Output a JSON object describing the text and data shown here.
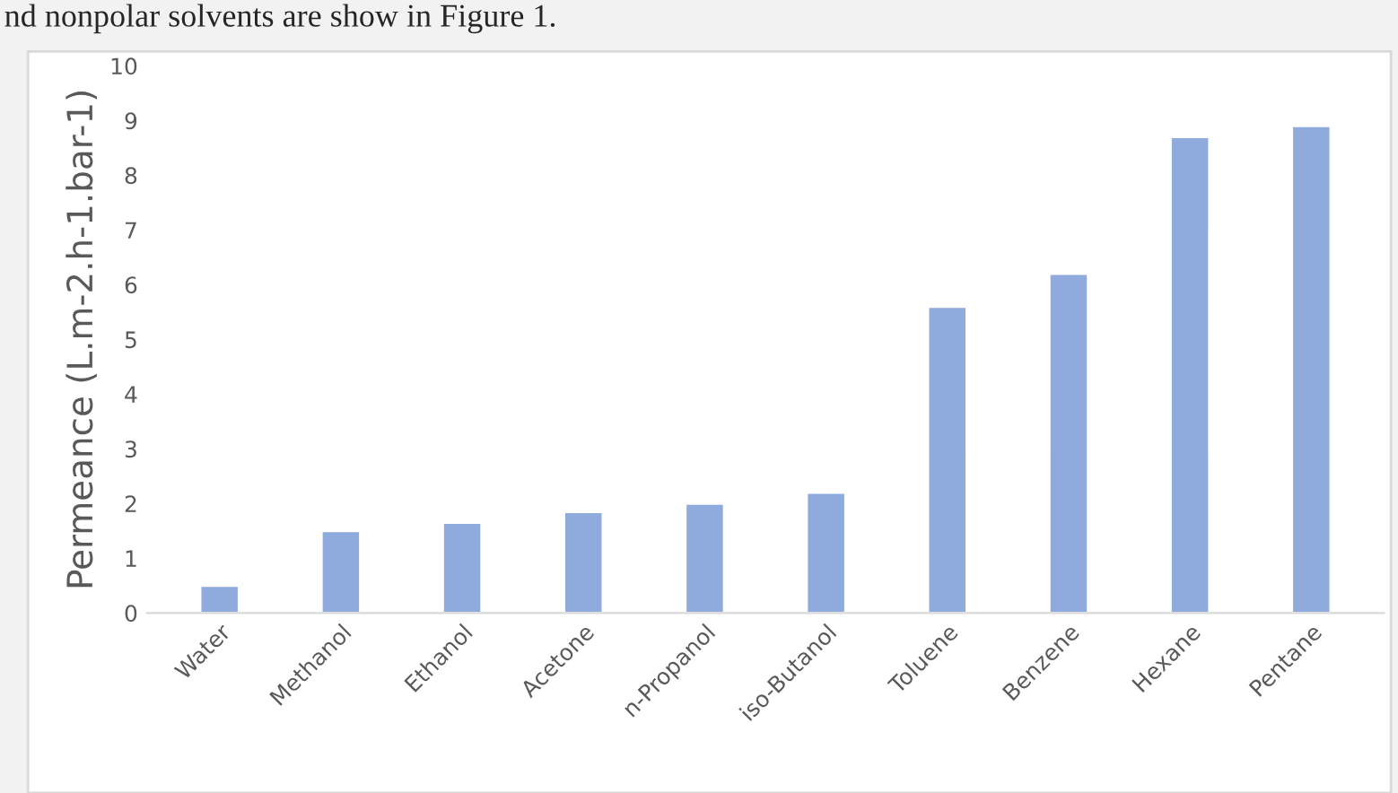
{
  "chart_data": {
    "type": "bar",
    "categories": [
      "Water",
      "Methanol",
      "Ethanol",
      "Acetone",
      "n-Propanol",
      "iso-Butanol",
      "Toluene",
      "Benzene",
      "Hexane",
      "Pentane"
    ],
    "values": [
      0.5,
      1.5,
      1.65,
      1.85,
      2.0,
      2.2,
      5.6,
      6.2,
      8.7,
      8.9
    ],
    "color": "#8faadc",
    "ylabel": "Permeance (L.m-2.h-1.bar-1)",
    "ylim": [
      0,
      10
    ],
    "yticks": [
      0,
      1,
      2,
      3,
      4,
      5,
      6,
      7,
      8,
      9,
      10
    ],
    "annotations": [
      "nd nonpolar solvents are show in Figure 1."
    ],
    "grid": false
  }
}
